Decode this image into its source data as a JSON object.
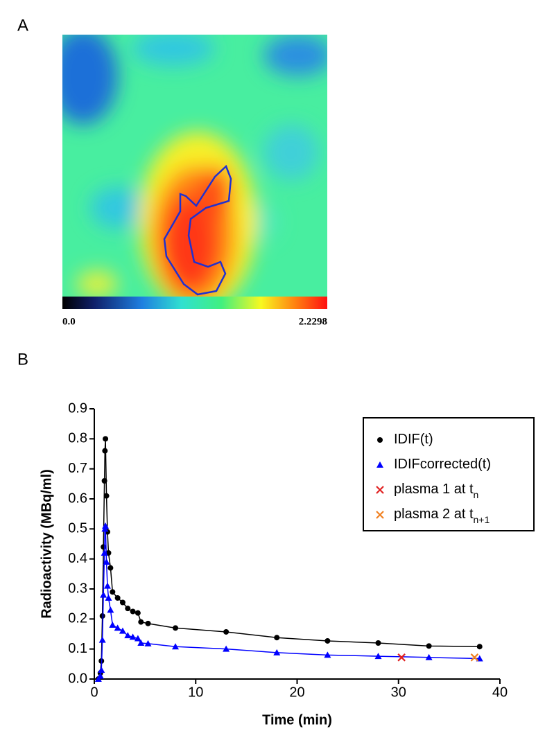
{
  "chart_data": [
    {
      "type": "heatmap",
      "label": "A",
      "clim": [
        0,
        2.2298
      ],
      "colorbar_ticks": [
        {
          "value": 0,
          "label": "0.0"
        },
        2.2298
      ]
    },
    {
      "type": "line",
      "label": "B",
      "xlabel": "Time (min)",
      "ylabel": "Radioactivity (MBq/ml)",
      "xlim": [
        0,
        40
      ],
      "xticks": [
        0,
        10,
        20,
        30,
        40
      ],
      "ylim": [
        0,
        0.9
      ],
      "yticks": [
        {
          "value": 0,
          "label": "0.0"
        },
        0.1,
        0.2,
        0.3,
        0.4,
        0.5,
        0.6,
        0.7,
        0.8,
        0.9
      ],
      "legend": "upper right",
      "series": [
        {
          "name": "IDIF(t)",
          "color": "#000000",
          "marker": "circle",
          "line": true,
          "x": [
            0.4,
            0.6,
            0.7,
            0.8,
            0.9,
            1.0,
            1.05,
            1.1,
            1.2,
            1.3,
            1.4,
            1.6,
            1.8,
            2.3,
            2.8,
            3.3,
            3.8,
            4.3,
            4.6,
            5.3,
            8,
            13,
            18,
            23,
            28,
            33,
            38
          ],
          "values": [
            0.0,
            0.02,
            0.06,
            0.21,
            0.44,
            0.66,
            0.76,
            0.8,
            0.61,
            0.49,
            0.42,
            0.37,
            0.29,
            0.27,
            0.255,
            0.235,
            0.225,
            0.22,
            0.19,
            0.185,
            0.17,
            0.157,
            0.138,
            0.127,
            0.12,
            0.11,
            0.108
          ]
        },
        {
          "name": "IDIFcorrected(t)",
          "color": "#0000ff",
          "marker": "triangle",
          "line": true,
          "x": [
            0.4,
            0.6,
            0.7,
            0.8,
            0.9,
            1.0,
            1.05,
            1.1,
            1.2,
            1.3,
            1.4,
            1.6,
            1.8,
            2.3,
            2.8,
            3.3,
            3.8,
            4.3,
            4.6,
            5.3,
            8,
            13,
            18,
            23,
            28,
            33,
            38
          ],
          "values": [
            0.0,
            0.01,
            0.03,
            0.13,
            0.28,
            0.42,
            0.5,
            0.51,
            0.39,
            0.31,
            0.27,
            0.23,
            0.18,
            0.17,
            0.16,
            0.145,
            0.14,
            0.135,
            0.12,
            0.118,
            0.108,
            0.1,
            0.088,
            0.08,
            0.076,
            0.072,
            0.068
          ]
        },
        {
          "name": "plasma 1 at t",
          "subscript": "n",
          "color": "#e02020",
          "marker": "x",
          "line": false,
          "x": [
            30.3
          ],
          "values": [
            0.072
          ]
        },
        {
          "name": "plasma 2 at t",
          "subscript": "n+1",
          "color": "#f08020",
          "marker": "x",
          "line": false,
          "x": [
            37.5
          ],
          "values": [
            0.072
          ]
        }
      ]
    }
  ]
}
